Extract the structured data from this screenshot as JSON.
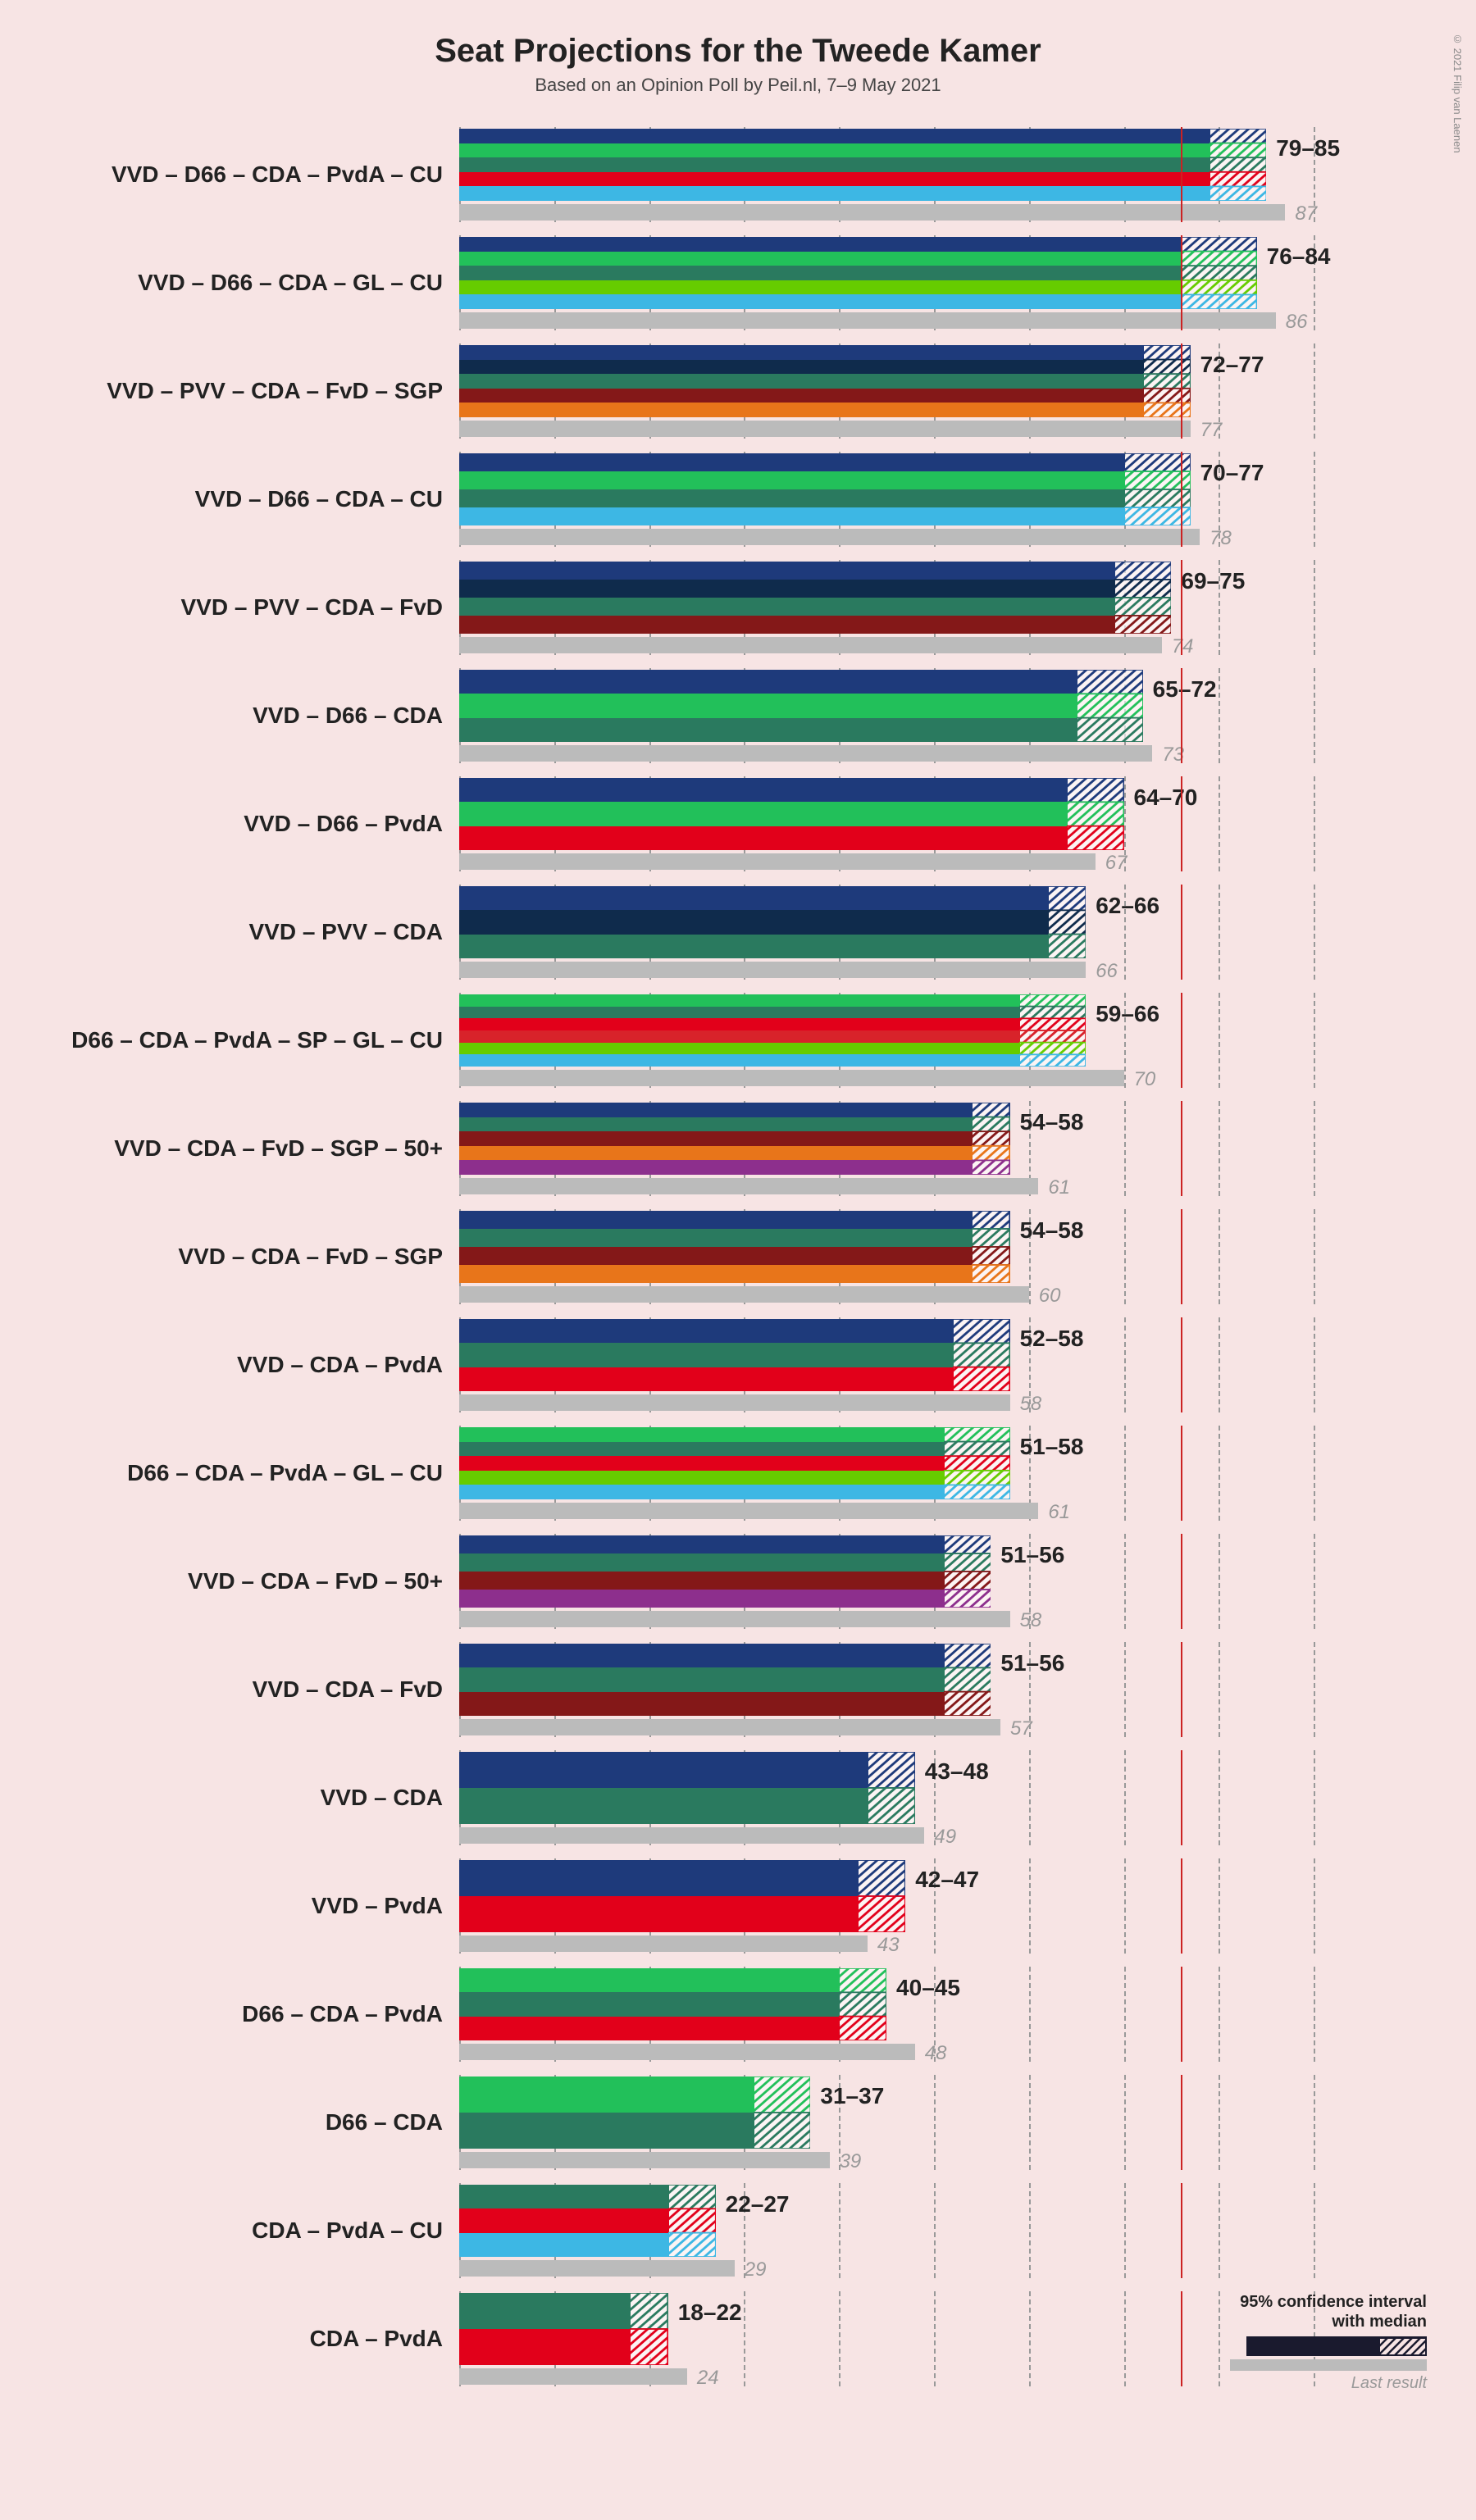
{
  "title": "Seat Projections for the Tweede Kamer",
  "subtitle": "Based on an Opinion Poll by Peil.nl, 7–9 May 2021",
  "copyright": "© 2021 Filip van Laenen",
  "chart": {
    "type": "bar",
    "xmax": 95,
    "xtick_step": 10,
    "majority_line": 76,
    "background_color": "#f7e4e4",
    "grid_color": "#999999",
    "majority_color": "#cc2222",
    "last_bar_color": "#bbbbbb",
    "title_fontsize": 40,
    "subtitle_fontsize": 22,
    "label_fontsize": 28,
    "range_fontsize": 28,
    "last_fontsize": 24
  },
  "party_colors": {
    "VVD": "#1e3a7b",
    "D66": "#22c05a",
    "CDA": "#2a7a5f",
    "PvdA": "#e2001a",
    "CU": "#3db7e4",
    "GL": "#66cc00",
    "PVV": "#0f2b4c",
    "FvD": "#841818",
    "SGP": "#e8751a",
    "SP": "#d8232a",
    "50+": "#8d2f8d"
  },
  "legend": {
    "ci_label": "95% confidence interval\nwith median",
    "last_label": "Last result"
  },
  "coalitions": [
    {
      "parties": [
        "VVD",
        "D66",
        "CDA",
        "PvdA",
        "CU"
      ],
      "low": 79,
      "high": 85,
      "last": 87
    },
    {
      "parties": [
        "VVD",
        "D66",
        "CDA",
        "GL",
        "CU"
      ],
      "low": 76,
      "high": 84,
      "last": 86
    },
    {
      "parties": [
        "VVD",
        "PVV",
        "CDA",
        "FvD",
        "SGP"
      ],
      "low": 72,
      "high": 77,
      "last": 77
    },
    {
      "parties": [
        "VVD",
        "D66",
        "CDA",
        "CU"
      ],
      "low": 70,
      "high": 77,
      "last": 78
    },
    {
      "parties": [
        "VVD",
        "PVV",
        "CDA",
        "FvD"
      ],
      "low": 69,
      "high": 75,
      "last": 74
    },
    {
      "parties": [
        "VVD",
        "D66",
        "CDA"
      ],
      "low": 65,
      "high": 72,
      "last": 73
    },
    {
      "parties": [
        "VVD",
        "D66",
        "PvdA"
      ],
      "low": 64,
      "high": 70,
      "last": 67
    },
    {
      "parties": [
        "VVD",
        "PVV",
        "CDA"
      ],
      "low": 62,
      "high": 66,
      "last": 66
    },
    {
      "parties": [
        "D66",
        "CDA",
        "PvdA",
        "SP",
        "GL",
        "CU"
      ],
      "low": 59,
      "high": 66,
      "last": 70
    },
    {
      "parties": [
        "VVD",
        "CDA",
        "FvD",
        "SGP",
        "50+"
      ],
      "low": 54,
      "high": 58,
      "last": 61
    },
    {
      "parties": [
        "VVD",
        "CDA",
        "FvD",
        "SGP"
      ],
      "low": 54,
      "high": 58,
      "last": 60
    },
    {
      "parties": [
        "VVD",
        "CDA",
        "PvdA"
      ],
      "low": 52,
      "high": 58,
      "last": 58
    },
    {
      "parties": [
        "D66",
        "CDA",
        "PvdA",
        "GL",
        "CU"
      ],
      "low": 51,
      "high": 58,
      "last": 61
    },
    {
      "parties": [
        "VVD",
        "CDA",
        "FvD",
        "50+"
      ],
      "low": 51,
      "high": 56,
      "last": 58
    },
    {
      "parties": [
        "VVD",
        "CDA",
        "FvD"
      ],
      "low": 51,
      "high": 56,
      "last": 57
    },
    {
      "parties": [
        "VVD",
        "CDA"
      ],
      "low": 43,
      "high": 48,
      "last": 49
    },
    {
      "parties": [
        "VVD",
        "PvdA"
      ],
      "low": 42,
      "high": 47,
      "last": 43
    },
    {
      "parties": [
        "D66",
        "CDA",
        "PvdA"
      ],
      "low": 40,
      "high": 45,
      "last": 48
    },
    {
      "parties": [
        "D66",
        "CDA"
      ],
      "low": 31,
      "high": 37,
      "last": 39
    },
    {
      "parties": [
        "CDA",
        "PvdA",
        "CU"
      ],
      "low": 22,
      "high": 27,
      "last": 29
    },
    {
      "parties": [
        "CDA",
        "PvdA"
      ],
      "low": 18,
      "high": 22,
      "last": 24
    }
  ]
}
